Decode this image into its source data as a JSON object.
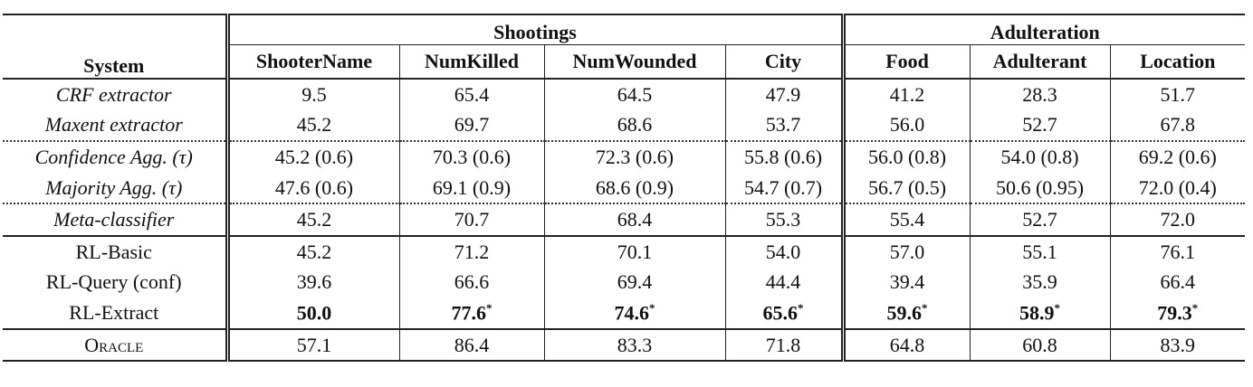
{
  "header": {
    "system": "System",
    "group_shootings": "Shootings",
    "group_adulteration": "Adulteration",
    "columns": [
      "ShooterName",
      "NumKilled",
      "NumWounded",
      "City",
      "Food",
      "Adulterant",
      "Location"
    ]
  },
  "rows": [
    {
      "system": "CRF extractor",
      "values": [
        "9.5",
        "65.4",
        "64.5",
        "47.9",
        "41.2",
        "28.3",
        "51.7"
      ]
    },
    {
      "system": "Maxent extractor",
      "values": [
        "45.2",
        "69.7",
        "68.6",
        "53.7",
        "56.0",
        "52.7",
        "67.8"
      ]
    },
    {
      "system": "Confidence Agg. (τ)",
      "values": [
        "45.2 (0.6)",
        "70.3 (0.6)",
        "72.3 (0.6)",
        "55.8 (0.6)",
        "56.0 (0.8)",
        "54.0 (0.8)",
        "69.2 (0.6)"
      ]
    },
    {
      "system": "Majority Agg. (τ)",
      "values": [
        "47.6 (0.6)",
        "69.1 (0.9)",
        "68.6 (0.9)",
        "54.7 (0.7)",
        "56.7 (0.5)",
        "50.6 (0.95)",
        "72.0 (0.4)"
      ]
    },
    {
      "system": "Meta-classifier",
      "values": [
        "45.2",
        "70.7",
        "68.4",
        "55.3",
        "55.4",
        "52.7",
        "72.0"
      ]
    },
    {
      "system": "RL-Basic",
      "values": [
        "45.2",
        "71.2",
        "70.1",
        "54.0",
        "57.0",
        "55.1",
        "76.1"
      ]
    },
    {
      "system": "RL-Query (conf)",
      "values": [
        "39.6",
        "66.6",
        "69.4",
        "44.4",
        "39.4",
        "35.9",
        "66.4"
      ]
    },
    {
      "system": "RL-Extract",
      "values": [
        "50.0",
        "77.6",
        "74.6",
        "65.6",
        "59.6",
        "58.9",
        "79.3"
      ],
      "stars": [
        "",
        "*",
        "*",
        "*",
        "*",
        "*",
        "*"
      ]
    },
    {
      "system": "Oracle",
      "values": [
        "57.1",
        "86.4",
        "83.3",
        "71.8",
        "64.8",
        "60.8",
        "83.9"
      ]
    }
  ]
}
